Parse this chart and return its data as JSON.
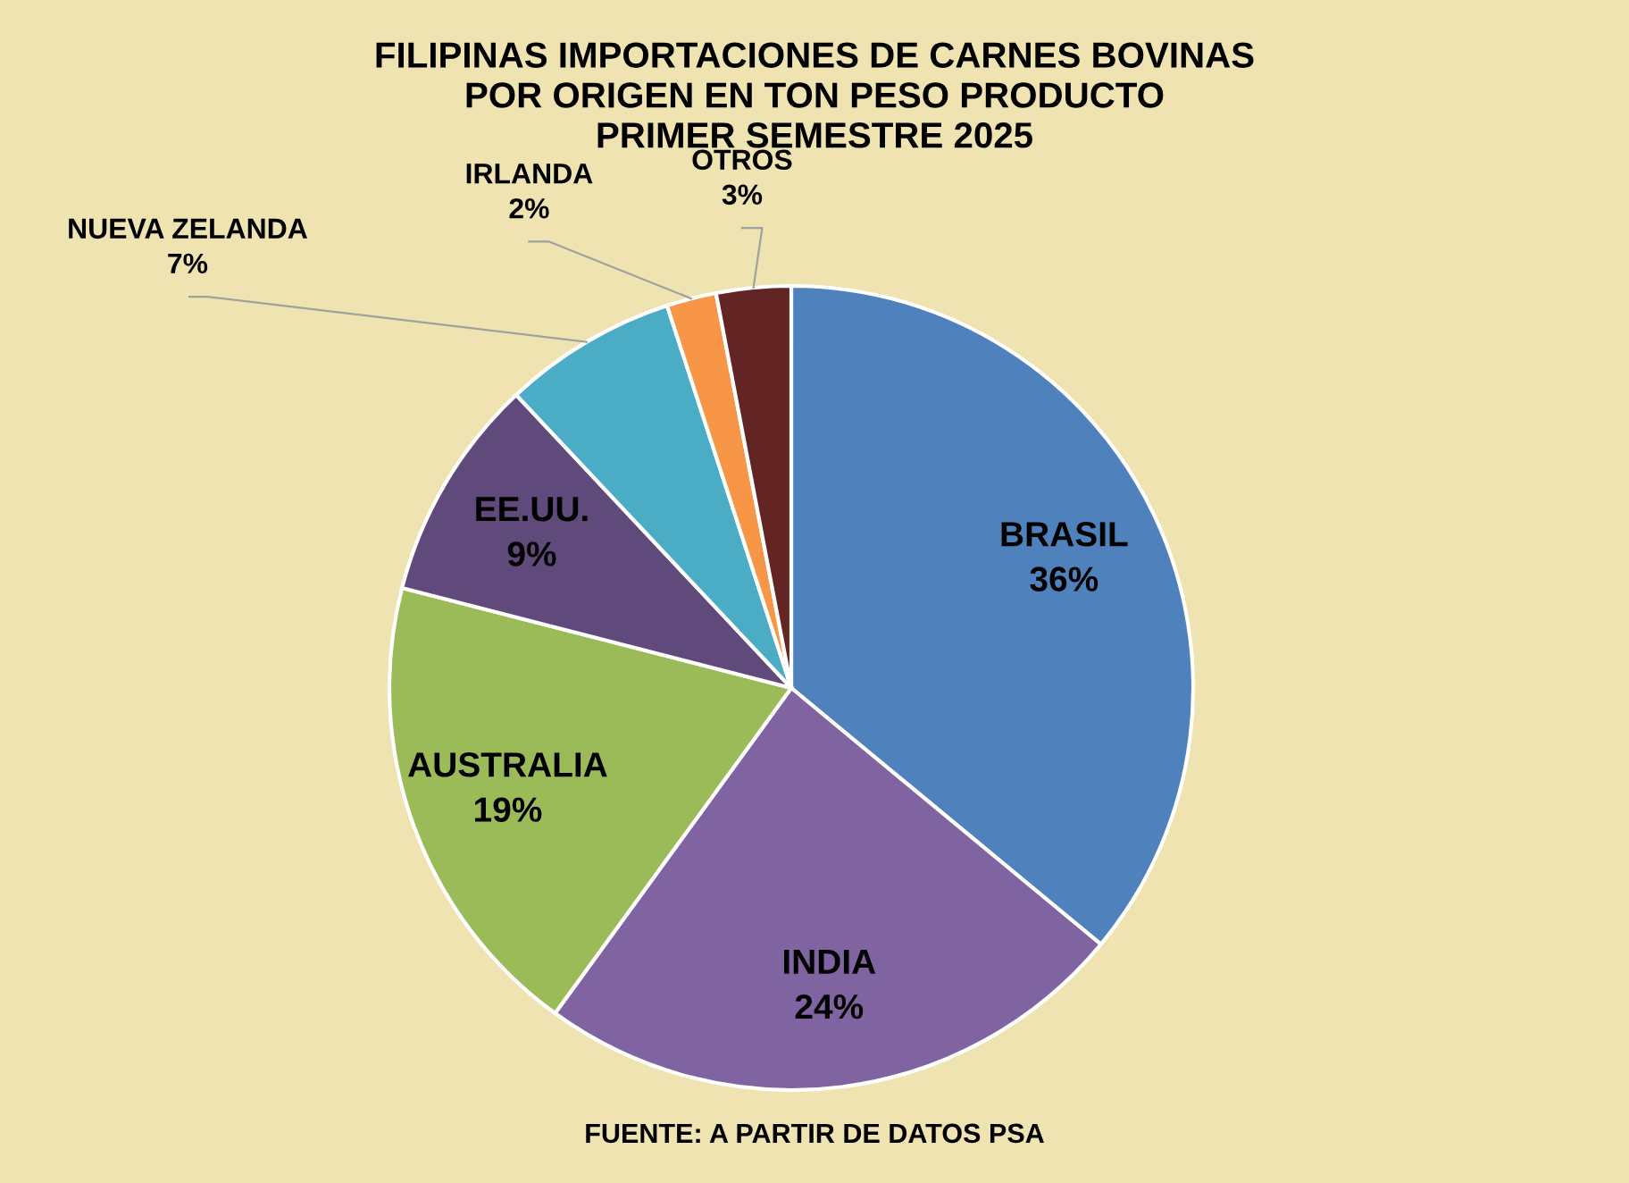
{
  "chart_data": {
    "type": "pie",
    "title": "FILIPINAS IMPORTACIONES DE CARNES BOVINAS\nPOR ORIGEN EN TON PESO PRODUCTO\nPRIMER SEMESTRE 2025",
    "categories": [
      "BRASIL",
      "INDIA",
      "AUSTRALIA",
      "EE.UU.",
      "NUEVA ZELANDA",
      "IRLANDA",
      "OTROS"
    ],
    "values": [
      36,
      24,
      19,
      9,
      7,
      2,
      3
    ],
    "colors": [
      "#4f81bd",
      "#8064a2",
      "#9bbb59",
      "#604a7b",
      "#4bacc6",
      "#f79646",
      "#632523"
    ],
    "value_labels": [
      "36%",
      "24%",
      "19%",
      "9%",
      "7%",
      "2%",
      "3%"
    ],
    "annotations": [
      "FUENTE: A PARTIR DE DATOS PSA"
    ]
  }
}
